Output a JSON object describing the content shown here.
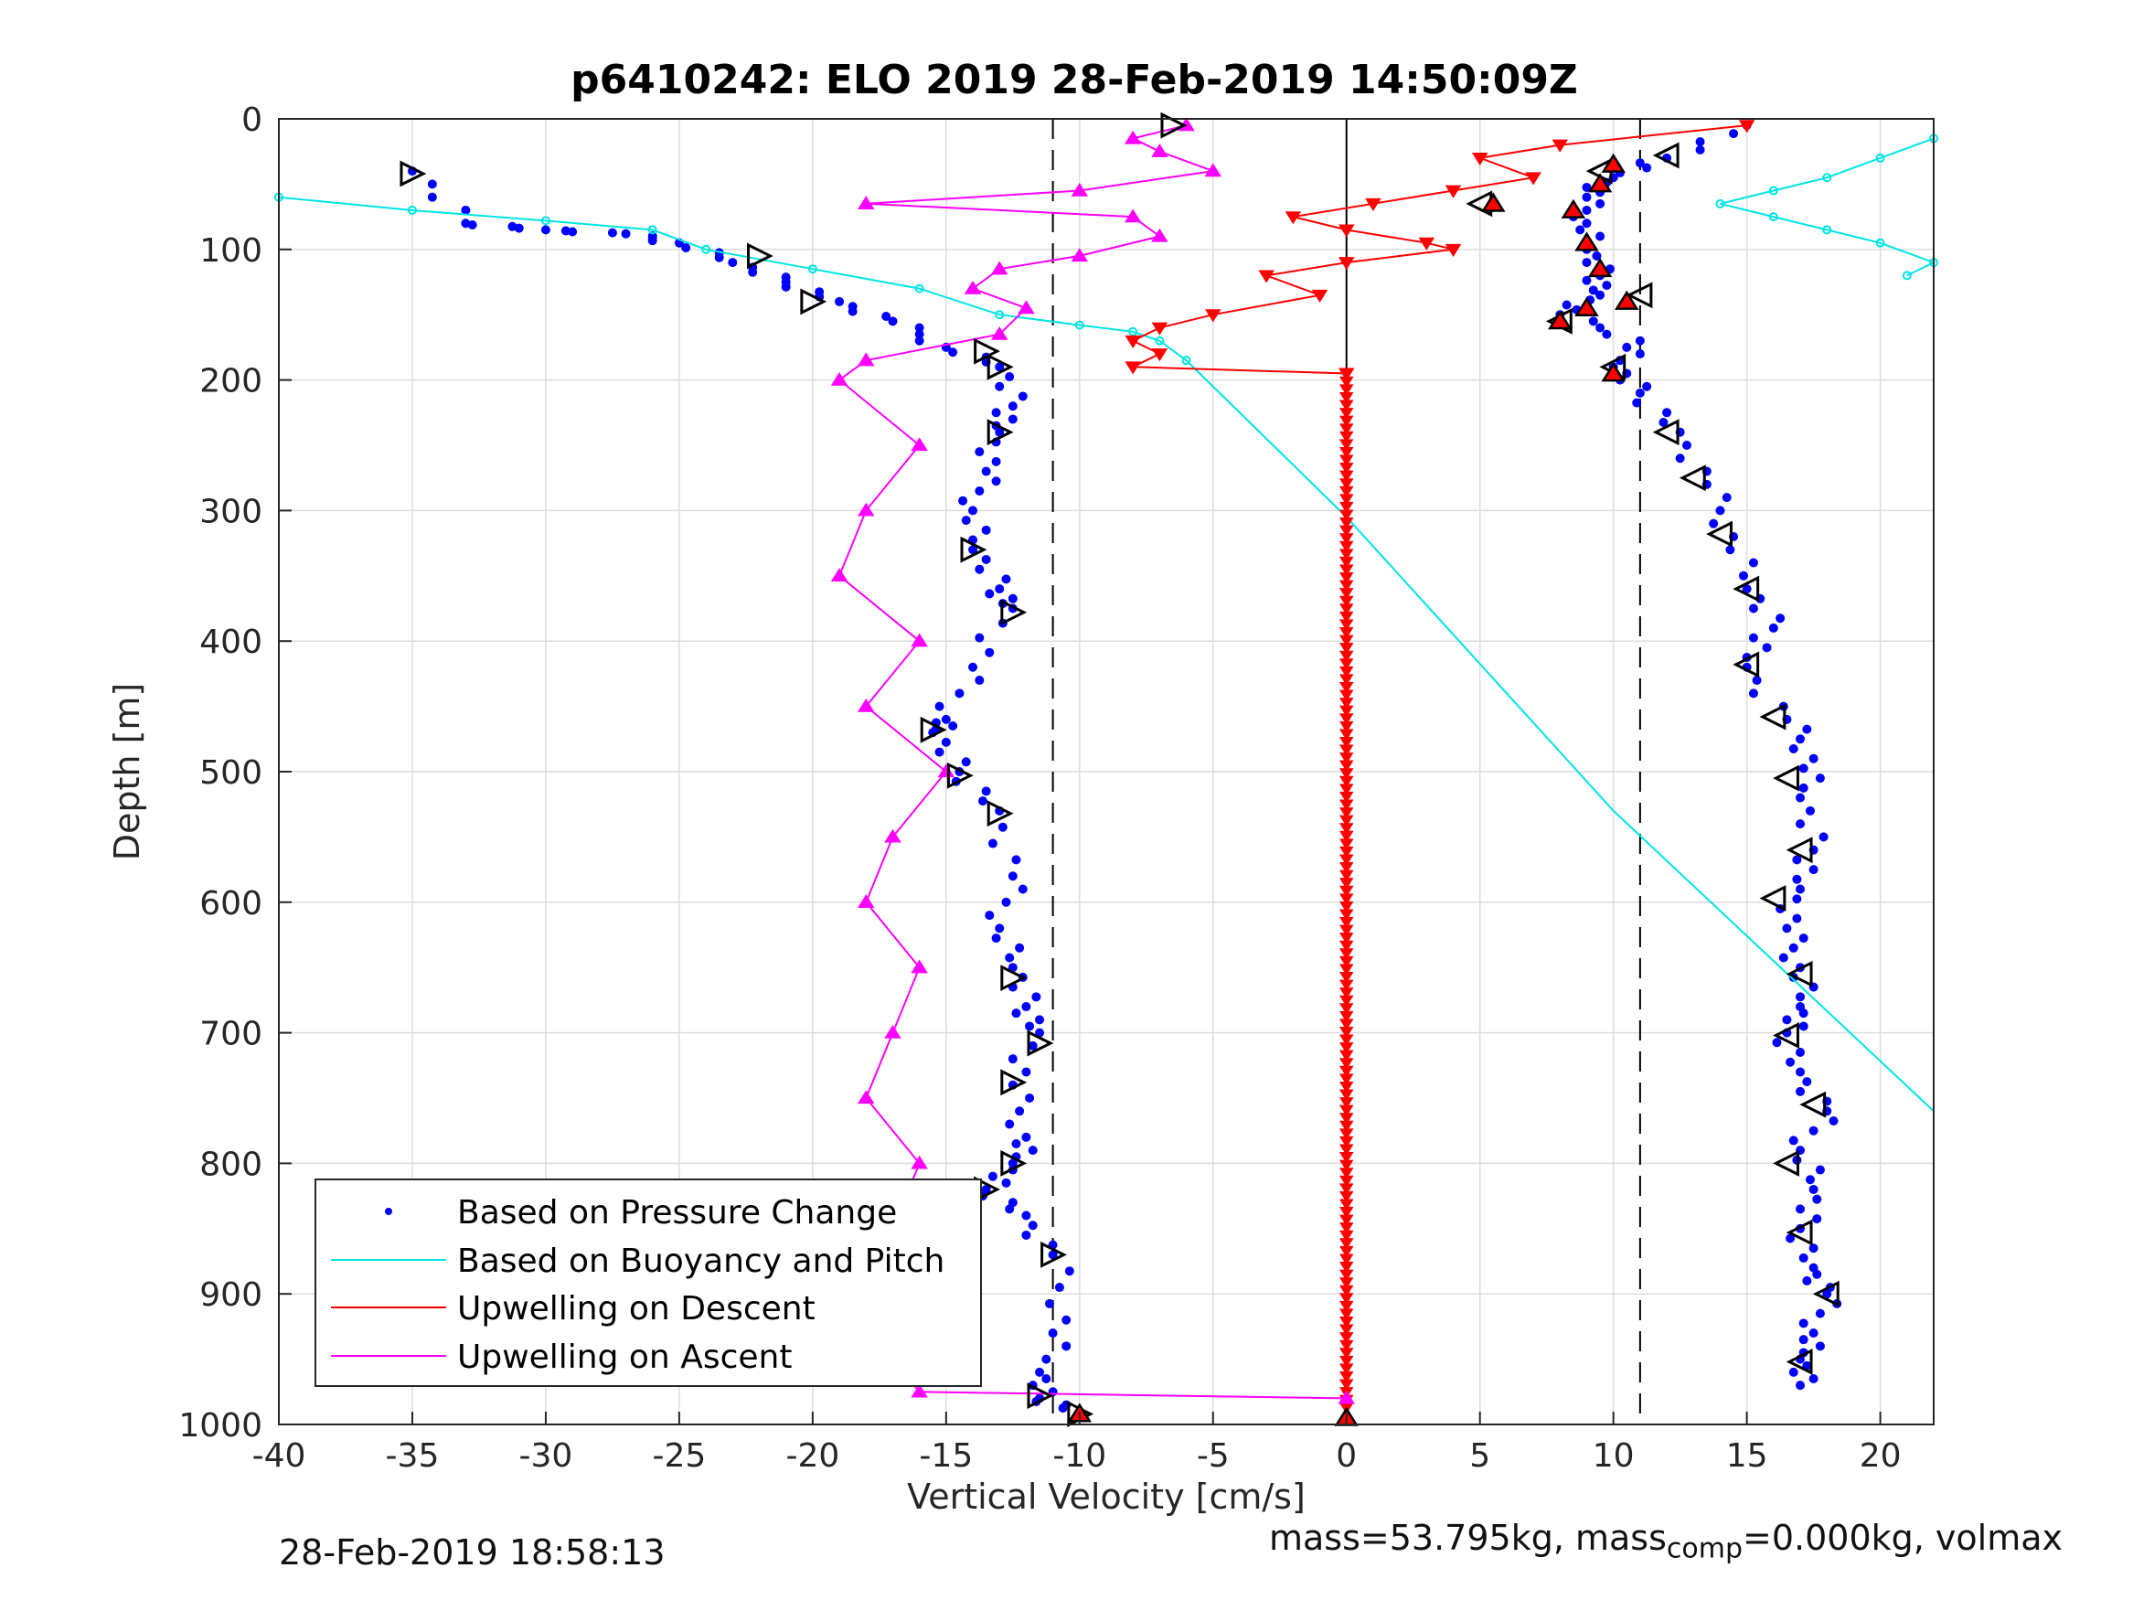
{
  "chart_data": {
    "type": "scatter",
    "title": "p6410242: ELO 2019 28-Feb-2019 14:50:09Z",
    "xlabel": "Vertical Velocity [cm/s]",
    "ylabel": "Depth [m]",
    "xlim": [
      -40,
      22
    ],
    "ylim": [
      0,
      1000
    ],
    "y_reversed": true,
    "grid": true,
    "x_ticks": [
      "-40",
      "-35",
      "-30",
      "-25",
      "-20",
      "-15",
      "-10",
      "-5",
      "0",
      "5",
      "10",
      "15",
      "20"
    ],
    "x_tick_values": [
      -40,
      -35,
      -30,
      -25,
      -20,
      -15,
      -10,
      -5,
      0,
      5,
      10,
      15,
      20
    ],
    "y_ticks": [
      "0",
      "100",
      "200",
      "300",
      "400",
      "500",
      "600",
      "700",
      "800",
      "900",
      "1000"
    ],
    "y_tick_values": [
      0,
      100,
      200,
      300,
      400,
      500,
      600,
      700,
      800,
      900,
      1000
    ],
    "legend_position": "bottom-left",
    "reference_lines_x": [
      -11,
      0,
      11
    ],
    "colors": {
      "pressure": "#0000ff",
      "buoyancy": "#00e5e5",
      "descent": "#ff0000",
      "ascent": "#ff00ff",
      "markers": "#000000"
    },
    "series": [
      {
        "name": "Based on Pressure Change",
        "key": "pressure",
        "descent_points": [
          [
            -35,
            40
          ],
          [
            -33,
            80
          ],
          [
            -30,
            85
          ],
          [
            -27,
            88
          ],
          [
            -25,
            95
          ],
          [
            -23,
            110
          ],
          [
            -21,
            125
          ],
          [
            -19,
            140
          ],
          [
            -17,
            155
          ],
          [
            -15,
            175
          ],
          [
            -13,
            190
          ],
          [
            -12.5,
            220
          ],
          [
            -13,
            240
          ],
          [
            -13.5,
            270
          ],
          [
            -14,
            300
          ],
          [
            -14,
            330
          ],
          [
            -13,
            360
          ],
          [
            -12.5,
            375
          ],
          [
            -14,
            420
          ],
          [
            -15,
            460
          ],
          [
            -15.5,
            470
          ],
          [
            -14.5,
            500
          ],
          [
            -13,
            530
          ],
          [
            -12.5,
            580
          ],
          [
            -13,
            620
          ],
          [
            -12.5,
            650
          ],
          [
            -12,
            680
          ],
          [
            -11.5,
            700
          ],
          [
            -12.5,
            740
          ],
          [
            -12,
            780
          ],
          [
            -12.5,
            800
          ],
          [
            -13.5,
            820
          ],
          [
            -12,
            840
          ],
          [
            -11,
            870
          ],
          [
            -10.5,
            920
          ],
          [
            -11.5,
            960
          ],
          [
            -11.5,
            980
          ],
          [
            -10,
            990
          ]
        ],
        "ascent_points": [
          [
            15,
            5
          ],
          [
            12,
            30
          ],
          [
            10,
            45
          ],
          [
            9,
            60
          ],
          [
            9,
            80
          ],
          [
            9,
            100
          ],
          [
            9.5,
            120
          ],
          [
            9.5,
            135
          ],
          [
            8,
            150
          ],
          [
            11,
            170
          ],
          [
            10,
            190
          ],
          [
            11,
            210
          ],
          [
            12.5,
            240
          ],
          [
            13.5,
            280
          ],
          [
            14.5,
            320
          ],
          [
            15,
            360
          ],
          [
            16,
            390
          ],
          [
            15,
            420
          ],
          [
            16.5,
            460
          ],
          [
            17.5,
            490
          ],
          [
            17,
            520
          ],
          [
            17.5,
            560
          ],
          [
            17,
            590
          ],
          [
            16.5,
            620
          ],
          [
            17,
            650
          ],
          [
            17,
            680
          ],
          [
            16.5,
            700
          ],
          [
            17,
            730
          ],
          [
            18,
            760
          ],
          [
            17,
            790
          ],
          [
            17.5,
            820
          ],
          [
            17,
            850
          ],
          [
            17.5,
            880
          ],
          [
            18,
            900
          ],
          [
            17.5,
            930
          ],
          [
            17,
            950
          ],
          [
            17,
            970
          ]
        ]
      },
      {
        "name": "Based on Buoyancy and Pitch",
        "key": "buoyancy",
        "points": [
          [
            -40,
            60
          ],
          [
            -35,
            70
          ],
          [
            -30,
            78
          ],
          [
            -26,
            85
          ],
          [
            -24,
            100
          ],
          [
            -20,
            115
          ],
          [
            -16,
            130
          ],
          [
            -13,
            150
          ],
          [
            -10,
            158
          ],
          [
            -8,
            163
          ],
          [
            -7,
            170
          ],
          [
            -6,
            185
          ],
          [
            0,
            305
          ],
          [
            10,
            530
          ],
          [
            22,
            760
          ]
        ],
        "ascent_points": [
          [
            22,
            15
          ],
          [
            20,
            30
          ],
          [
            18,
            45
          ],
          [
            16,
            55
          ],
          [
            14,
            65
          ],
          [
            16,
            75
          ],
          [
            18,
            85
          ],
          [
            20,
            95
          ],
          [
            22,
            110
          ],
          [
            21,
            120
          ]
        ]
      },
      {
        "name": "Upwelling on Descent",
        "key": "descent",
        "points": [
          [
            15,
            5
          ],
          [
            8,
            20
          ],
          [
            5,
            30
          ],
          [
            7,
            45
          ],
          [
            4,
            55
          ],
          [
            1,
            65
          ],
          [
            -2,
            75
          ],
          [
            0,
            85
          ],
          [
            3,
            95
          ],
          [
            4,
            100
          ],
          [
            0,
            110
          ],
          [
            -3,
            120
          ],
          [
            -1,
            135
          ],
          [
            -5,
            150
          ],
          [
            -7,
            160
          ],
          [
            -8,
            170
          ],
          [
            -7,
            180
          ],
          [
            -8,
            190
          ],
          [
            0,
            195
          ],
          [
            0,
            300
          ],
          [
            0,
            400
          ],
          [
            0,
            500
          ],
          [
            0,
            600
          ],
          [
            0,
            700
          ],
          [
            0,
            800
          ],
          [
            0,
            900
          ],
          [
            0,
            990
          ]
        ]
      },
      {
        "name": "Upwelling on Ascent",
        "key": "ascent",
        "points": [
          [
            -6,
            5
          ],
          [
            -8,
            15
          ],
          [
            -7,
            25
          ],
          [
            -5,
            40
          ],
          [
            -10,
            55
          ],
          [
            -18,
            65
          ],
          [
            -8,
            75
          ],
          [
            -7,
            90
          ],
          [
            -10,
            105
          ],
          [
            -13,
            115
          ],
          [
            -14,
            130
          ],
          [
            -12,
            145
          ],
          [
            -13,
            165
          ],
          [
            -18,
            185
          ],
          [
            -19,
            200
          ],
          [
            -16,
            250
          ],
          [
            -18,
            300
          ],
          [
            -19,
            350
          ],
          [
            -16,
            400
          ],
          [
            -18,
            450
          ],
          [
            -15,
            500
          ],
          [
            -17,
            550
          ],
          [
            -18,
            600
          ],
          [
            -16,
            650
          ],
          [
            -17,
            700
          ],
          [
            -18,
            750
          ],
          [
            -16,
            800
          ],
          [
            -17,
            850
          ],
          [
            -16,
            900
          ],
          [
            -17,
            950
          ],
          [
            -16,
            975
          ],
          [
            0,
            980
          ]
        ]
      }
    ],
    "descent_markers": [
      [
        -35,
        42
      ],
      [
        -22,
        105
      ],
      [
        -20,
        140
      ],
      [
        -13.5,
        178
      ],
      [
        -13,
        190
      ],
      [
        -13,
        240
      ],
      [
        -14,
        330
      ],
      [
        -12.5,
        378
      ],
      [
        -15.5,
        468
      ],
      [
        -14.5,
        503
      ],
      [
        -13,
        532
      ],
      [
        -12.5,
        658
      ],
      [
        -11.5,
        708
      ],
      [
        -12.5,
        738
      ],
      [
        -12.5,
        800
      ],
      [
        -13.5,
        820
      ],
      [
        -11,
        870
      ],
      [
        -11.5,
        978
      ],
      [
        -10,
        992
      ],
      [
        -6.5,
        5
      ]
    ],
    "ascent_markers": [
      [
        12,
        28
      ],
      [
        9.5,
        40
      ],
      [
        5,
        65
      ],
      [
        8,
        155
      ],
      [
        11,
        135
      ],
      [
        10,
        190
      ],
      [
        12,
        240
      ],
      [
        13,
        275
      ],
      [
        14,
        318
      ],
      [
        15,
        360
      ],
      [
        15,
        418
      ],
      [
        16,
        458
      ],
      [
        16.5,
        505
      ],
      [
        17,
        560
      ],
      [
        16,
        597
      ],
      [
        17,
        655
      ],
      [
        16.5,
        702
      ],
      [
        17.5,
        755
      ],
      [
        16.5,
        800
      ],
      [
        17,
        853
      ],
      [
        18,
        900
      ],
      [
        17,
        952
      ]
    ],
    "red_ascent_markers": [
      [
        10,
        35
      ],
      [
        9.5,
        50
      ],
      [
        5.5,
        65
      ],
      [
        8.5,
        70
      ],
      [
        9,
        95
      ],
      [
        9.5,
        115
      ],
      [
        8,
        155
      ],
      [
        9,
        145
      ],
      [
        10,
        195
      ],
      [
        10.5,
        140
      ],
      [
        0,
        995
      ],
      [
        -10,
        992
      ]
    ],
    "legend_entries": [
      "Based on Pressure Change",
      "Based on Buoyancy and Pitch",
      "Upwelling on Descent",
      "Upwelling on Ascent"
    ]
  },
  "footer": {
    "timestamp": "28-Feb-2019 18:58:13",
    "mass_text": "mass=53.795kg, mass",
    "mass_sub": "comp",
    "mass_tail": "=0.000kg, volmax"
  }
}
